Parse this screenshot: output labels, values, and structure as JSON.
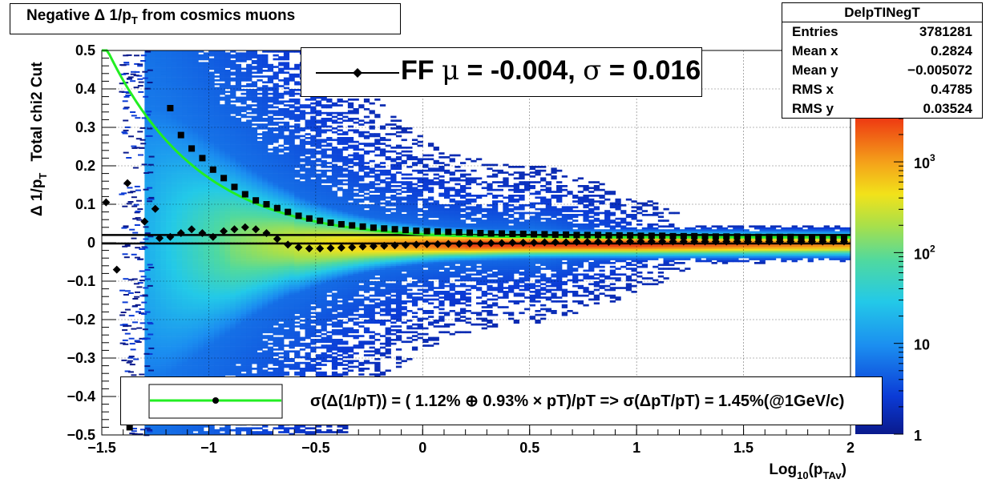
{
  "title": "Negative Δ 1/p",
  "title_sub": "T",
  "title_rest": " from cosmics muons",
  "stats": {
    "name": "DelpTINegT",
    "rows": [
      {
        "label": "Entries",
        "value": "3781281"
      },
      {
        "label": "Mean x",
        "value": "0.2824"
      },
      {
        "label": "Mean y",
        "value": "−0.005072"
      },
      {
        "label": "RMS x",
        "value": "0.4785"
      },
      {
        "label": "RMS y",
        "value": "0.03524"
      }
    ]
  },
  "ff_legend": {
    "text_a": "FF ",
    "mu": "μ",
    "text_b": " = -0.004, ",
    "sigma": "σ",
    "text_c": " =   0.016"
  },
  "fit_legend": {
    "text": "σ(Δ(1/pT)) = ( 1.12% ⊕  0.93% × pT)/pT => σ(ΔpT/pT) =  1.45%(@1GeV/c)"
  },
  "colors": {
    "fit_curve": "#22ee22",
    "markers": "#000000",
    "frame": "#000000"
  },
  "chart_data": {
    "type": "heatmap",
    "title": "Negative Δ 1/pT from cosmics muons",
    "xlabel": "Log10(pTAv)",
    "xlabel_parts": {
      "a": "Log",
      "b": "10",
      "c": "(p",
      "d": "TAv",
      "e": ")"
    },
    "ylabel": "Δ 1/pT    Total chi2 Cut",
    "ylabel_parts": {
      "a": "Δ 1/p",
      "b": "T",
      "c": "Total chi2 Cut"
    },
    "xlim": [
      -1.5,
      2
    ],
    "ylim": [
      -0.5,
      0.5
    ],
    "x_ticks": [
      {
        "v": -1.5,
        "label": "−1.5"
      },
      {
        "v": -1,
        "label": "−1"
      },
      {
        "v": -0.5,
        "label": "−0.5"
      },
      {
        "v": 0,
        "label": "0"
      },
      {
        "v": 0.5,
        "label": "0.5"
      },
      {
        "v": 1,
        "label": "1"
      },
      {
        "v": 1.5,
        "label": "1.5"
      },
      {
        "v": 2,
        "label": "2"
      }
    ],
    "y_ticks": [
      {
        "v": 0.5,
        "label": "0.5"
      },
      {
        "v": 0.4,
        "label": "0.4"
      },
      {
        "v": 0.3,
        "label": "0.3"
      },
      {
        "v": 0.2,
        "label": "0.2"
      },
      {
        "v": 0.1,
        "label": "0.1"
      },
      {
        "v": 0,
        "label": "0"
      },
      {
        "v": -0.1,
        "label": "−0.1"
      },
      {
        "v": -0.2,
        "label": "−0.2"
      },
      {
        "v": -0.3,
        "label": "−0.3"
      },
      {
        "v": -0.4,
        "label": "−0.4"
      },
      {
        "v": -0.5,
        "label": "−0.5"
      }
    ],
    "z_scale": "log",
    "z_ticks": [
      {
        "v": 1,
        "label": "1"
      },
      {
        "v": 10,
        "label": "10"
      },
      {
        "v": 100,
        "base": "10",
        "exp": "2"
      },
      {
        "v": 1000,
        "base": "10",
        "exp": "3"
      }
    ],
    "zlim": [
      1,
      3000
    ],
    "grid": true,
    "series": [
      {
        "kind": "squares",
        "points": [
          [
            -1.37,
            -0.48
          ],
          [
            -1.18,
            0.35
          ],
          [
            -1.13,
            0.28
          ],
          [
            -1.08,
            0.245
          ],
          [
            -1.03,
            0.22
          ],
          [
            -0.98,
            0.19
          ],
          [
            -0.93,
            0.168
          ],
          [
            -0.88,
            0.145
          ],
          [
            -0.83,
            0.126
          ],
          [
            -0.78,
            0.11
          ],
          [
            -0.73,
            0.1
          ],
          [
            -0.68,
            0.09
          ],
          [
            -0.63,
            0.08
          ],
          [
            -0.58,
            0.07
          ],
          [
            -0.53,
            0.063
          ],
          [
            -0.48,
            0.057
          ],
          [
            -0.43,
            0.052
          ],
          [
            -0.38,
            0.048
          ],
          [
            -0.33,
            0.045
          ],
          [
            -0.28,
            0.042
          ],
          [
            -0.23,
            0.039
          ],
          [
            -0.18,
            0.037
          ],
          [
            -0.13,
            0.035
          ],
          [
            -0.08,
            0.033
          ],
          [
            -0.03,
            0.031
          ],
          [
            0.02,
            0.03
          ],
          [
            0.07,
            0.029
          ],
          [
            0.12,
            0.028
          ],
          [
            0.17,
            0.027
          ],
          [
            0.22,
            0.026
          ],
          [
            0.27,
            0.025
          ],
          [
            0.32,
            0.024
          ],
          [
            0.37,
            0.024
          ],
          [
            0.42,
            0.023
          ],
          [
            0.47,
            0.023
          ],
          [
            0.52,
            0.022
          ],
          [
            0.57,
            0.022
          ],
          [
            0.62,
            0.021
          ],
          [
            0.67,
            0.021
          ],
          [
            0.72,
            0.02
          ],
          [
            0.77,
            0.02
          ],
          [
            0.82,
            0.02
          ],
          [
            0.87,
            0.019
          ],
          [
            0.92,
            0.019
          ],
          [
            0.97,
            0.019
          ],
          [
            1.02,
            0.018
          ],
          [
            1.07,
            0.018
          ],
          [
            1.12,
            0.018
          ],
          [
            1.17,
            0.017
          ],
          [
            1.22,
            0.017
          ],
          [
            1.27,
            0.017
          ],
          [
            1.32,
            0.016
          ],
          [
            1.37,
            0.016
          ],
          [
            1.42,
            0.016
          ],
          [
            1.47,
            0.016
          ],
          [
            1.52,
            0.015
          ],
          [
            1.57,
            0.015
          ],
          [
            1.62,
            0.015
          ],
          [
            1.67,
            0.015
          ],
          [
            1.72,
            0.015
          ],
          [
            1.77,
            0.014
          ],
          [
            1.82,
            0.014
          ],
          [
            1.87,
            0.014
          ],
          [
            1.92,
            0.014
          ],
          [
            1.97,
            0.014
          ]
        ]
      },
      {
        "kind": "diamonds",
        "points": [
          [
            -1.48,
            0.105
          ],
          [
            -1.43,
            -0.07
          ],
          [
            -1.38,
            0.155
          ],
          [
            -1.3,
            0.055
          ],
          [
            -1.25,
            0.088
          ],
          [
            -1.23,
            0.012
          ],
          [
            -1.18,
            0.015
          ],
          [
            -1.13,
            0.025
          ],
          [
            -1.08,
            0.035
          ],
          [
            -1.03,
            0.025
          ],
          [
            -0.98,
            0.015
          ],
          [
            -0.93,
            0.03
          ],
          [
            -0.88,
            0.035
          ],
          [
            -0.83,
            0.04
          ],
          [
            -0.78,
            0.035
          ],
          [
            -0.73,
            0.025
          ],
          [
            -0.68,
            0.01
          ],
          [
            -0.63,
            -0.005
          ],
          [
            -0.58,
            -0.012
          ],
          [
            -0.53,
            -0.015
          ],
          [
            -0.48,
            -0.015
          ],
          [
            -0.43,
            -0.014
          ],
          [
            -0.38,
            -0.013
          ],
          [
            -0.33,
            -0.012
          ],
          [
            -0.28,
            -0.01
          ],
          [
            -0.23,
            -0.009
          ],
          [
            -0.18,
            -0.008
          ],
          [
            -0.13,
            -0.007
          ],
          [
            -0.08,
            -0.006
          ],
          [
            -0.03,
            -0.005
          ],
          [
            0.02,
            -0.004
          ],
          [
            0.07,
            -0.004
          ],
          [
            0.12,
            -0.003
          ],
          [
            0.17,
            -0.003
          ],
          [
            0.22,
            -0.002
          ],
          [
            0.27,
            -0.002
          ],
          [
            0.32,
            -0.001
          ],
          [
            0.37,
            -0.001
          ],
          [
            0.42,
            0
          ],
          [
            0.47,
            0
          ],
          [
            0.52,
            0
          ],
          [
            0.57,
            0.001
          ],
          [
            0.62,
            0.001
          ],
          [
            0.67,
            0.001
          ],
          [
            0.72,
            0.002
          ],
          [
            0.77,
            0.002
          ],
          [
            0.82,
            0.002
          ],
          [
            0.87,
            0.002
          ],
          [
            0.92,
            0.002
          ],
          [
            0.97,
            0.003
          ],
          [
            1.02,
            0.003
          ],
          [
            1.07,
            0.003
          ],
          [
            1.12,
            0.003
          ],
          [
            1.17,
            0.003
          ],
          [
            1.22,
            0.003
          ],
          [
            1.27,
            0.003
          ],
          [
            1.32,
            0.003
          ],
          [
            1.37,
            0.003
          ],
          [
            1.42,
            0.003
          ],
          [
            1.47,
            0.003
          ],
          [
            1.52,
            0.003
          ],
          [
            1.57,
            0.003
          ],
          [
            1.62,
            0.003
          ],
          [
            1.67,
            0.003
          ],
          [
            1.72,
            0.003
          ],
          [
            1.77,
            0.003
          ],
          [
            1.82,
            0.003
          ],
          [
            1.87,
            0.003
          ],
          [
            1.92,
            0.003
          ],
          [
            1.97,
            0.003
          ]
        ]
      },
      {
        "kind": "fit_curve",
        "a": 0.0112,
        "b": 0.0093,
        "note_formula": "sqrt(a^2/pT^2 + b^2)"
      }
    ],
    "lines": [
      {
        "kind": "flat",
        "y": -0.002
      },
      {
        "kind": "flat",
        "y": 0.02
      }
    ]
  }
}
